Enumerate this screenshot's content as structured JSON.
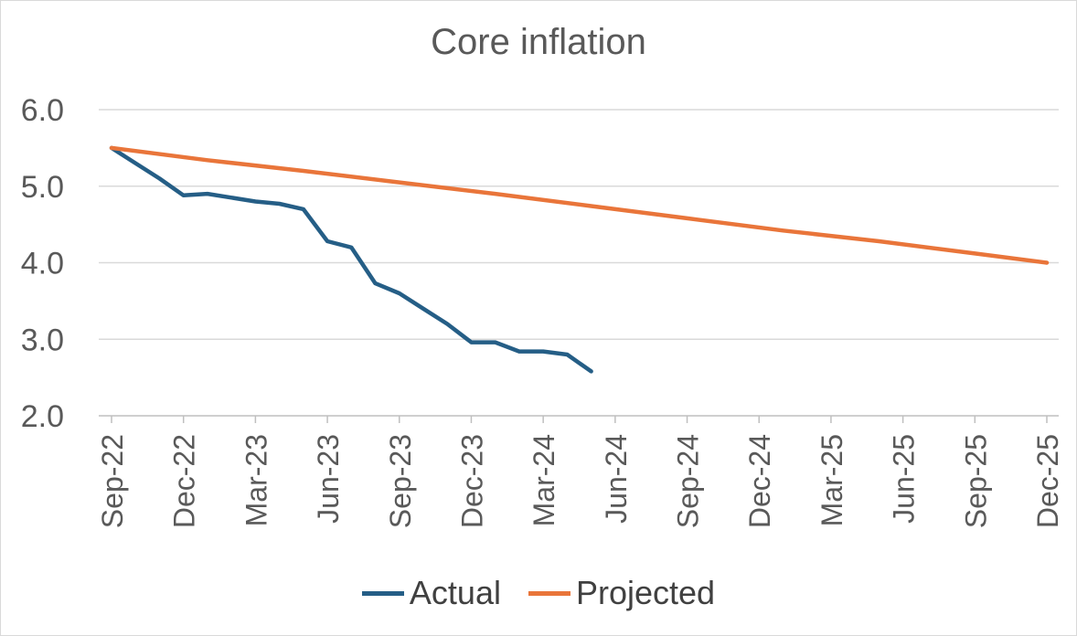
{
  "chart_data": {
    "type": "line",
    "title": "Core inflation",
    "xlabel": "",
    "ylabel": "",
    "ylim": [
      2.0,
      6.0
    ],
    "yticks": [
      "6.0",
      "5.0",
      "4.0",
      "3.0",
      "2.0"
    ],
    "xlim": [
      "2022-09",
      "2025-12"
    ],
    "xticks": [
      "Sep-22",
      "Dec-22",
      "Mar-23",
      "Jun-23",
      "Sep-23",
      "Dec-23",
      "Mar-24",
      "Jun-24",
      "Sep-24",
      "Dec-24",
      "Mar-25",
      "Jun-25",
      "Sep-25",
      "Dec-25"
    ],
    "grid": true,
    "legend_position": "bottom",
    "series": [
      {
        "name": "Actual",
        "color": "#255e86",
        "x": [
          "2022-09",
          "2022-10",
          "2022-11",
          "2022-12",
          "2023-01",
          "2023-02",
          "2023-03",
          "2023-04",
          "2023-05",
          "2023-06",
          "2023-07",
          "2023-08",
          "2023-09",
          "2023-10",
          "2023-11",
          "2023-12",
          "2024-01",
          "2024-02",
          "2024-03",
          "2024-04",
          "2024-05"
        ],
        "values": [
          5.5,
          5.3,
          5.1,
          4.88,
          4.9,
          4.85,
          4.8,
          4.77,
          4.7,
          4.28,
          4.2,
          3.73,
          3.6,
          3.4,
          3.2,
          2.96,
          2.96,
          2.84,
          2.84,
          2.8,
          2.58
        ]
      },
      {
        "name": "Projected",
        "color": "#e9753a",
        "x": [
          "2022-09",
          "2023-01",
          "2023-05",
          "2023-09",
          "2024-01",
          "2024-05",
          "2024-09",
          "2025-01",
          "2025-05",
          "2025-09",
          "2025-12"
        ],
        "values": [
          5.5,
          5.34,
          5.2,
          5.05,
          4.9,
          4.74,
          4.58,
          4.42,
          4.28,
          4.12,
          4.0
        ]
      }
    ]
  }
}
